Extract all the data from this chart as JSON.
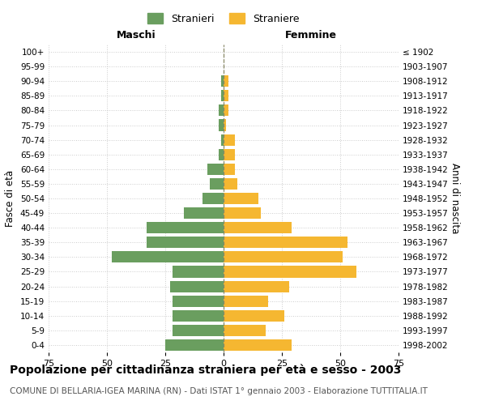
{
  "age_groups": [
    "0-4",
    "5-9",
    "10-14",
    "15-19",
    "20-24",
    "25-29",
    "30-34",
    "35-39",
    "40-44",
    "45-49",
    "50-54",
    "55-59",
    "60-64",
    "65-69",
    "70-74",
    "75-79",
    "80-84",
    "85-89",
    "90-94",
    "95-99",
    "100+"
  ],
  "birth_years": [
    "1998-2002",
    "1993-1997",
    "1988-1992",
    "1983-1987",
    "1978-1982",
    "1973-1977",
    "1968-1972",
    "1963-1967",
    "1958-1962",
    "1953-1957",
    "1948-1952",
    "1943-1947",
    "1938-1942",
    "1933-1937",
    "1928-1932",
    "1923-1927",
    "1918-1922",
    "1913-1917",
    "1908-1912",
    "1903-1907",
    "≤ 1902"
  ],
  "males": [
    25,
    22,
    22,
    22,
    23,
    22,
    48,
    33,
    33,
    17,
    9,
    6,
    7,
    2,
    1,
    2,
    2,
    1,
    1,
    0,
    0
  ],
  "females": [
    29,
    18,
    26,
    19,
    28,
    57,
    51,
    53,
    29,
    16,
    15,
    6,
    5,
    5,
    5,
    1,
    2,
    2,
    2,
    0,
    0
  ],
  "male_color": "#6a9e5f",
  "female_color": "#f5b731",
  "background_color": "#ffffff",
  "grid_color": "#cccccc",
  "center_line_color": "#888866",
  "xlim": 75,
  "xlabel_left": "Maschi",
  "xlabel_right": "Femmine",
  "ylabel_left": "Fasce di età",
  "ylabel_right": "Anni di nascita",
  "legend_males": "Stranieri",
  "legend_females": "Straniere",
  "title": "Popolazione per cittadinanza straniera per età e sesso - 2003",
  "subtitle": "COMUNE DI BELLARIA-IGEA MARINA (RN) - Dati ISTAT 1° gennaio 2003 - Elaborazione TUTTITALIA.IT",
  "title_fontsize": 10,
  "subtitle_fontsize": 7.5
}
